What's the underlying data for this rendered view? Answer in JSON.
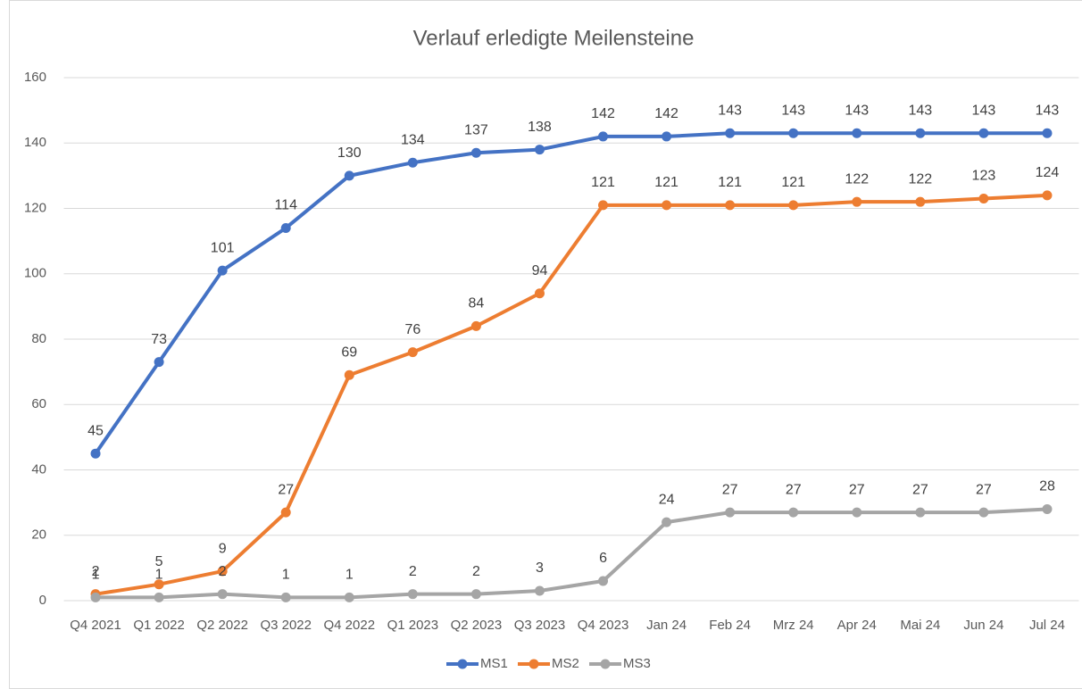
{
  "chart_data": {
    "type": "line",
    "title": "Verlauf erledigte Meilensteine",
    "categories": [
      "Q4 2021",
      "Q1 2022",
      "Q2 2022",
      "Q3 2022",
      "Q4 2022",
      "Q1 2023",
      "Q2 2023",
      "Q3 2023",
      "Q4 2023",
      "Jan 24",
      "Feb 24",
      "Mrz 24",
      "Apr 24",
      "Mai 24",
      "Jun 24",
      "Jul 24"
    ],
    "series": [
      {
        "name": "MS1",
        "color": "#4472c4",
        "values": [
          45,
          73,
          101,
          114,
          130,
          134,
          137,
          138,
          142,
          142,
          143,
          143,
          143,
          143,
          143,
          143
        ]
      },
      {
        "name": "MS2",
        "color": "#ed7d31",
        "values": [
          2,
          5,
          9,
          27,
          69,
          76,
          84,
          94,
          121,
          121,
          121,
          121,
          122,
          122,
          123,
          124
        ]
      },
      {
        "name": "MS3",
        "color": "#a5a5a5",
        "values": [
          1,
          1,
          2,
          1,
          1,
          2,
          2,
          3,
          6,
          24,
          27,
          27,
          27,
          27,
          27,
          28
        ]
      }
    ],
    "ylim": [
      0,
      160
    ],
    "yticks": [
      0,
      20,
      40,
      60,
      80,
      100,
      120,
      140,
      160
    ],
    "grid": true,
    "legend": "bottom"
  }
}
